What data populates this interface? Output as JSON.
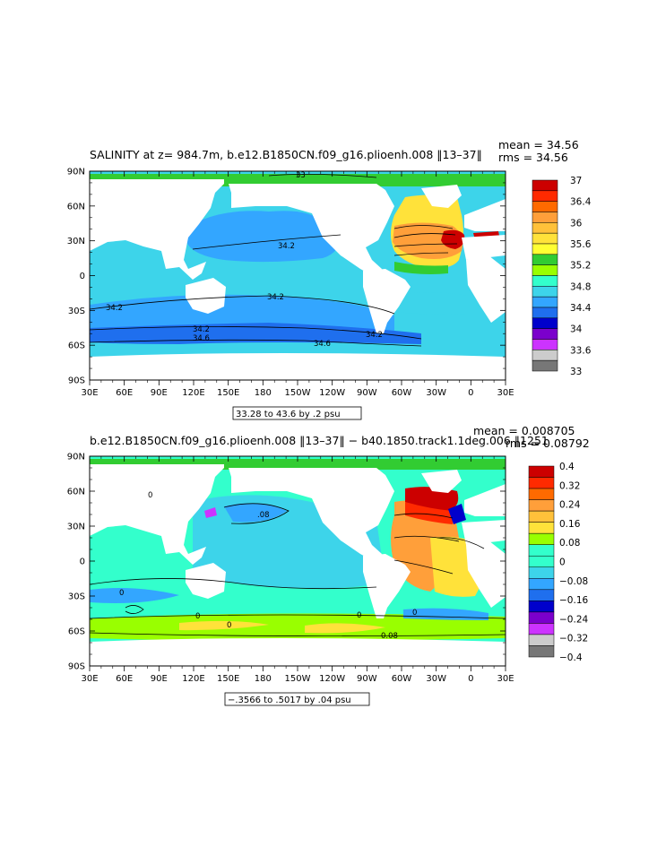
{
  "panel1": {
    "title": "SALINITY at z= 984.7m, b.e12.B1850CN.f09_g16.plioenh.008 ‖13–37‖",
    "mean": "mean = 34.56",
    "rms": "rms = 34.56",
    "range_label": "33.28 to 43.6 by .2 psu",
    "contour_labels": [
      "33",
      "34.2",
      "34.2",
      "34.2",
      "34.2",
      "34.6",
      "34.2",
      "34.6"
    ],
    "colorbar_labels": [
      "37",
      "36.4",
      "36",
      "35.6",
      "35.2",
      "34.8",
      "34.4",
      "34",
      "33.6",
      "33"
    ],
    "colorbar_colors": [
      "#cc0000",
      "#ff2a00",
      "#ff6a00",
      "#ff9f3a",
      "#ffc13a",
      "#ffe23a",
      "#ffff33",
      "#32cc32",
      "#99ff00",
      "#33ffcc",
      "#3dd4ea",
      "#33a6ff",
      "#1f6fee",
      "#0000cc",
      "#7b00cc",
      "#cc33ff",
      "#cccccc",
      "#777777"
    ]
  },
  "panel2": {
    "title": "b.e12.B1850CN.f09_g16.plioenh.008 ‖13–37‖ − b40.1850.track1.1deg.006 ‖1251",
    "mean": "mean = 0.008705",
    "rms": "rms = 0.08792",
    "range_label": "−.3566 to .5017 by .04 psu",
    "contour_labels": [
      "0",
      ".08",
      "0",
      "0",
      "0",
      "0",
      "0",
      "0.08"
    ],
    "colorbar_labels": [
      "0.4",
      "0.32",
      "0.24",
      "0.16",
      "0.08",
      "0",
      "−0.08",
      "−0.16",
      "−0.24",
      "−0.32",
      "−0.4"
    ],
    "colorbar_colors": [
      "#cc0000",
      "#ff2a00",
      "#ff6a00",
      "#ff9f3a",
      "#ffc13a",
      "#ffe23a",
      "#99ff00",
      "#33ffcc",
      "#33ffcc",
      "#3dd4ea",
      "#33a6ff",
      "#1f6fee",
      "#0000cc",
      "#7b00cc",
      "#cc33ff",
      "#cccccc",
      "#777777"
    ]
  },
  "axes": {
    "x_ticks": [
      "30E",
      "60E",
      "90E",
      "120E",
      "150E",
      "180",
      "150W",
      "120W",
      "90W",
      "60W",
      "30W",
      "0",
      "30E"
    ],
    "y_ticks": [
      "90N",
      "60N",
      "30N",
      "0",
      "30S",
      "60S",
      "90S"
    ]
  },
  "colors": {
    "land": "#ffffff",
    "ocean_mid": "#3dd4ea",
    "ocean_low": "#33a6ff",
    "ocean_deep": "#1f6fee",
    "arctic": "#32cc32",
    "atlantic_high": "#ffe23a",
    "atlantic_peak": "#cc0000"
  }
}
